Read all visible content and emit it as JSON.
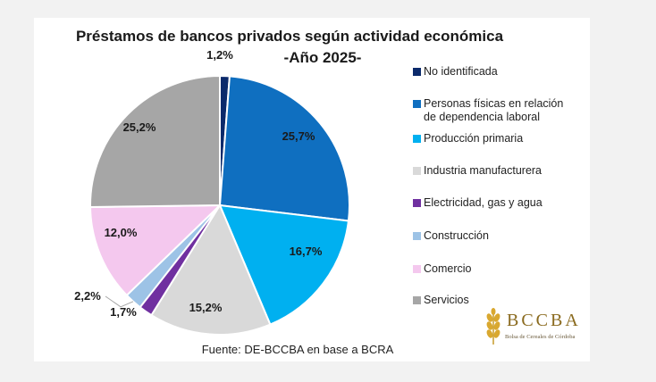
{
  "chart_data": {
    "type": "pie",
    "title": "Préstamos de bancos privados según actividad económica",
    "subtitle": "-Año 2025-",
    "slices": [
      {
        "name": "No identificada",
        "value": 1.2,
        "label": "1,2%",
        "color": "#0b2a6b"
      },
      {
        "name": "Personas físicas en relación de dependencia laboral",
        "value": 25.7,
        "label": "25,7%",
        "color": "#0f6fc0"
      },
      {
        "name": "Producción primaria",
        "value": 16.7,
        "label": "16,7%",
        "color": "#00b0f0"
      },
      {
        "name": "Industria manufacturera",
        "value": 15.2,
        "label": "15,2%",
        "color": "#d9d9d9"
      },
      {
        "name": "Electricidad, gas y agua",
        "value": 1.7,
        "label": "1,7%",
        "color": "#7030a0"
      },
      {
        "name": "Construcción",
        "value": 2.2,
        "label": "2,2%",
        "color": "#9dc3e6"
      },
      {
        "name": "Comercio",
        "value": 12.0,
        "label": "12,0%",
        "color": "#f4c8ee"
      },
      {
        "name": "Servicios",
        "value": 25.2,
        "label": "25,2%",
        "color": "#a6a6a6"
      }
    ],
    "legend_position": "right"
  },
  "legend": [
    {
      "line1": "No identificada",
      "line2": ""
    },
    {
      "line1": "Personas físicas en relación",
      "line2": "de dependencia laboral"
    },
    {
      "line1": "Producción primaria",
      "line2": ""
    },
    {
      "line1": "Industria manufacturera",
      "line2": ""
    },
    {
      "line1": "Electricidad, gas y agua",
      "line2": ""
    },
    {
      "line1": "Construcción",
      "line2": ""
    },
    {
      "line1": "Comercio",
      "line2": ""
    },
    {
      "line1": "Servicios",
      "line2": ""
    }
  ],
  "source": "Fuente: DE-BCCBA en base a BCRA",
  "logo": {
    "name": "BCCBA",
    "subtitle": "Bolsa de Cereales de Córdoba",
    "color": "#8a6a1e"
  }
}
